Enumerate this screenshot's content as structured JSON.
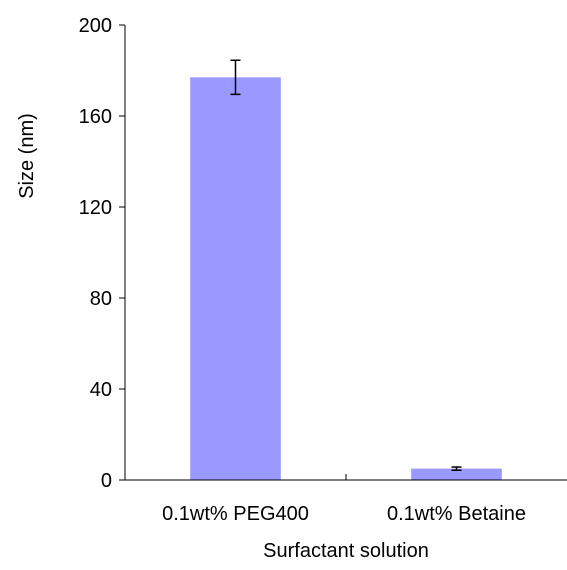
{
  "chart_data": {
    "type": "bar",
    "title": "",
    "xlabel": "Surfactant solution",
    "ylabel": "Size (nm)",
    "categories": [
      "0.1wt% PEG400",
      "0.1wt% Betaine"
    ],
    "values": [
      177,
      5
    ],
    "error": [
      7.5,
      0.7
    ],
    "ylim": [
      0,
      200
    ],
    "yticks": [
      "0",
      "40",
      "80",
      "120",
      "160",
      "200"
    ],
    "grid": false,
    "legend": "none",
    "bar_color": "#9999ff",
    "axis_color": "#000000"
  }
}
